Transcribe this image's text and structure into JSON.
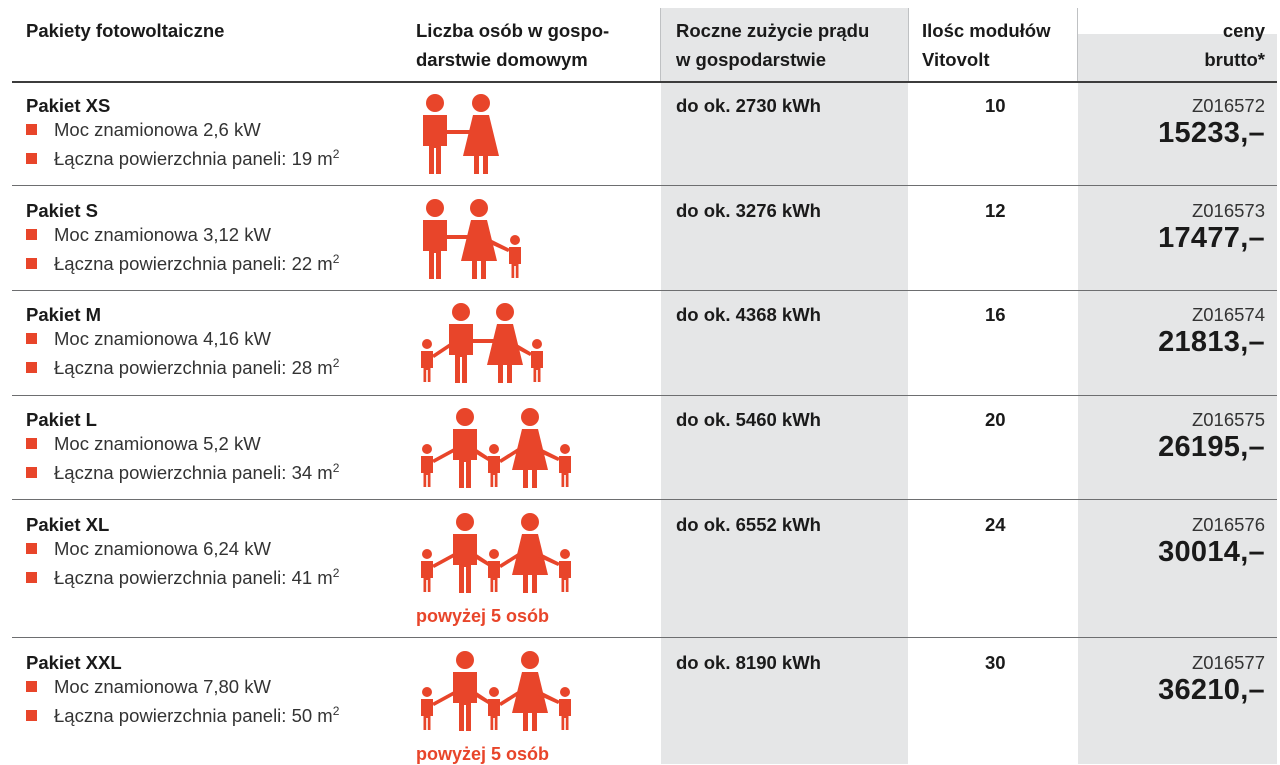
{
  "header": {
    "col_package": "Pakiety fotowoltaiczne",
    "col_people_line1": "Liczba osób w gospo-",
    "col_people_line2": "darstwie domowym",
    "col_consumption_line1": "Roczne zużycie prądu",
    "col_consumption_line2": "w gospodarstwie",
    "col_modules_line1": "Ilośc modułów",
    "col_modules_line2": "Vitovolt",
    "col_price_line1": "ceny",
    "col_price_line2": "brutto*"
  },
  "rows": [
    {
      "name": "Pakiet XS",
      "power": "Moc znamionowa 2,6 kW",
      "area_prefix": "Łączna powierzchnia paneli: 19 m",
      "area_sup": "2",
      "consumption": "do ok. 2730 kWh",
      "modules": "10",
      "code": "Z016572",
      "price": "15233,–",
      "family_icon": "family-2-adults-icon"
    },
    {
      "name": "Pakiet S",
      "power": "Moc znamionowa 3,12 kW",
      "area_prefix": "Łączna powierzchnia paneli: 22 m",
      "area_sup": "2",
      "consumption": "do ok. 3276 kWh",
      "modules": "12",
      "code": "Z016573",
      "price": "17477,–",
      "family_icon": "family-2-adults-1-child-icon"
    },
    {
      "name": "Pakiet M",
      "power": "Moc znamionowa 4,16 kW",
      "area_prefix": "Łączna powierzchnia paneli: 28 m",
      "area_sup": "2",
      "consumption": "do ok. 4368 kWh",
      "modules": "16",
      "code": "Z016574",
      "price": "21813,–",
      "family_icon": "family-2-adults-2-children-icon"
    },
    {
      "name": "Pakiet L",
      "power": "Moc znamionowa 5,2 kW",
      "area_prefix": "Łączna powierzchnia paneli: 34 m",
      "area_sup": "2",
      "consumption": "do ok. 5460 kWh",
      "modules": "20",
      "code": "Z016575",
      "price": "26195,–",
      "family_icon": "family-2-adults-3-children-icon"
    },
    {
      "name": "Pakiet XL",
      "power": "Moc znamionowa 6,24 kW",
      "area_prefix": "Łączna powierzchnia paneli: 41 m",
      "area_sup": "2",
      "consumption": "do ok. 6552 kWh",
      "modules": "24",
      "code": "Z016576",
      "price": "30014,–",
      "family_icon": "family-2-adults-3-children-icon",
      "note": "powyżej 5 osób"
    },
    {
      "name": "Pakiet XXL",
      "power": "Moc znamionowa 7,80 kW",
      "area_prefix": "Łączna powierzchnia paneli: 50 m",
      "area_sup": "2",
      "consumption": "do ok. 8190 kWh",
      "modules": "30",
      "code": "Z016577",
      "price": "36210,–",
      "family_icon": "family-2-adults-3-children-icon",
      "note": "powyżej 5 osób"
    }
  ],
  "colors": {
    "accent": "#e8452a",
    "grey_column": "#e5e6e7"
  }
}
